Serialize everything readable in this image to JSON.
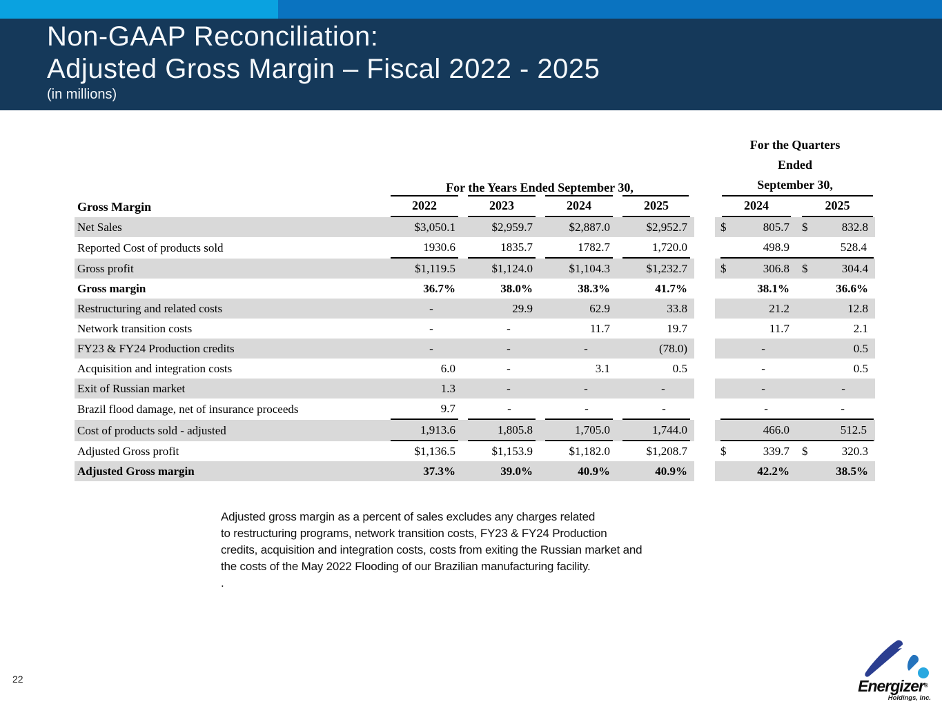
{
  "colors": {
    "accent_cyan": "#0aa2e0",
    "accent_blue": "#0a73c0",
    "header_navy": "#15395a",
    "row_shade_gray": "#d9d9d9",
    "logo_dark_blue": "#2b3e90",
    "logo_mid_blue": "#2473bc",
    "logo_light_blue": "#29a8e0"
  },
  "header": {
    "title_line1": "Non-GAAP Reconciliation:",
    "title_line2": "Adjusted Gross Margin – Fiscal 2022 - 2025",
    "subtitle": "(in millions)"
  },
  "table": {
    "corner_label": "Gross Margin",
    "group_headers": {
      "years": "For the Years Ended September 30,",
      "quarters_lines": [
        "For the Quarters",
        "Ended",
        "September 30,"
      ]
    },
    "columns": [
      "2022",
      "2023",
      "2024",
      "2025",
      "2024",
      "2025"
    ],
    "rows": [
      {
        "label": "Net Sales",
        "values": [
          "$3,050.1",
          "$2,959.7",
          "$2,887.0",
          "$2,952.7",
          "$ 805.7",
          "$ 832.8"
        ],
        "shade": true
      },
      {
        "label": "Reported Cost of products sold",
        "values": [
          "1930.6",
          "1835.7",
          "1782.7",
          "1,720.0",
          "498.9",
          "528.4"
        ],
        "shade": false,
        "underline": true
      },
      {
        "label": "Gross profit",
        "values": [
          "$1,119.5",
          "$1,124.0",
          "$1,104.3",
          "$1,232.7",
          "$ 306.8",
          "$ 304.4"
        ],
        "shade": true
      },
      {
        "label": "Gross margin",
        "values": [
          "36.7%",
          "38.0%",
          "38.3%",
          "41.7%",
          "38.1%",
          "36.6%"
        ],
        "shade": false,
        "bold": true
      },
      {
        "label": "Restructuring and related costs",
        "values": [
          "-",
          "29.9",
          "62.9",
          "33.8",
          "21.2",
          "12.8"
        ],
        "shade": true
      },
      {
        "label": "Network transition costs",
        "values": [
          "-",
          "-",
          "11.7",
          "19.7",
          "11.7",
          "2.1"
        ],
        "shade": false
      },
      {
        "label": "FY23 & FY24 Production credits",
        "values": [
          "-",
          "-",
          "-",
          "(78.0)",
          "-",
          "0.5"
        ],
        "shade": true
      },
      {
        "label": "Acquisition and integration costs",
        "values": [
          "6.0",
          "-",
          "3.1",
          "0.5",
          "-",
          "0.5"
        ],
        "shade": false
      },
      {
        "label": "Exit of Russian market",
        "values": [
          "1.3",
          "-",
          "-",
          "-",
          "-",
          "-"
        ],
        "shade": true
      },
      {
        "label": "Brazil flood damage, net of insurance proceeds",
        "values": [
          "9.7",
          "-",
          "-",
          "-",
          "-",
          "-"
        ],
        "shade": false,
        "underline": true
      },
      {
        "label": "Cost of products sold - adjusted",
        "values": [
          "1,913.6",
          "1,805.8",
          "1,705.0",
          "1,744.0",
          "466.0",
          "512.5"
        ],
        "shade": true,
        "underline": true
      },
      {
        "label": "Adjusted Gross profit",
        "values": [
          "$1,136.5",
          "$1,153.9",
          "$1,182.0",
          "$1,208.7",
          "$ 339.7",
          "$ 320.3"
        ],
        "shade": false
      },
      {
        "label": "Adjusted Gross margin",
        "values": [
          "37.3%",
          "39.0%",
          "40.9%",
          "40.9%",
          "42.2%",
          "38.5%"
        ],
        "shade": true,
        "bold": true
      }
    ]
  },
  "footnote": "Adjusted gross margin as a percent of sales excludes any charges related\nto restructuring programs, network transition costs, FY23 & FY24 Production\ncredits, acquisition and integration costs, costs from exiting the Russian market and\nthe costs of the May 2022 Flooding of our Brazilian manufacturing facility.\n.",
  "page_number": "22",
  "logo": {
    "brand": "Energizer",
    "reg_mark": "®",
    "subtext": "Holdings, Inc."
  }
}
